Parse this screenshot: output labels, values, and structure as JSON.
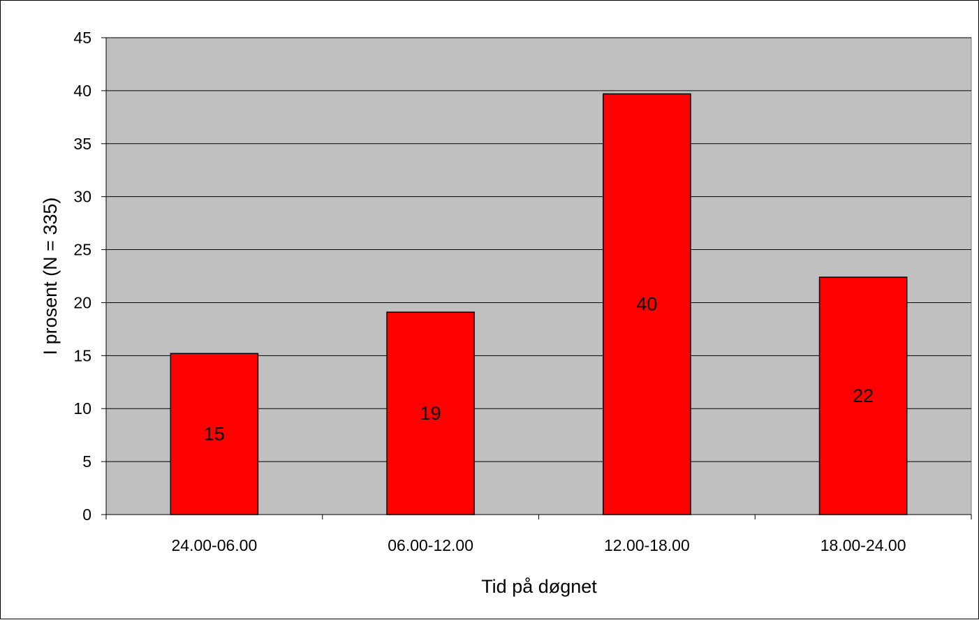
{
  "chart_data": {
    "type": "bar",
    "categories": [
      "24.00-06.00",
      "06.00-12.00",
      "12.00-18.00",
      "18.00-24.00"
    ],
    "values": [
      15.2,
      19.1,
      39.7,
      22.4
    ],
    "data_labels": [
      "15",
      "19",
      "40",
      "22"
    ],
    "xlabel": "Tid på døgnet",
    "ylabel": "I prosent (N = 335)",
    "ylim": [
      0,
      45
    ],
    "yticks": [
      0,
      5,
      10,
      15,
      20,
      25,
      30,
      35,
      40,
      45
    ],
    "grid": true,
    "legend": "none",
    "colors": {
      "bar": "#ff0000",
      "plot_background": "#c0c0c0",
      "gridline": "#000000"
    }
  }
}
